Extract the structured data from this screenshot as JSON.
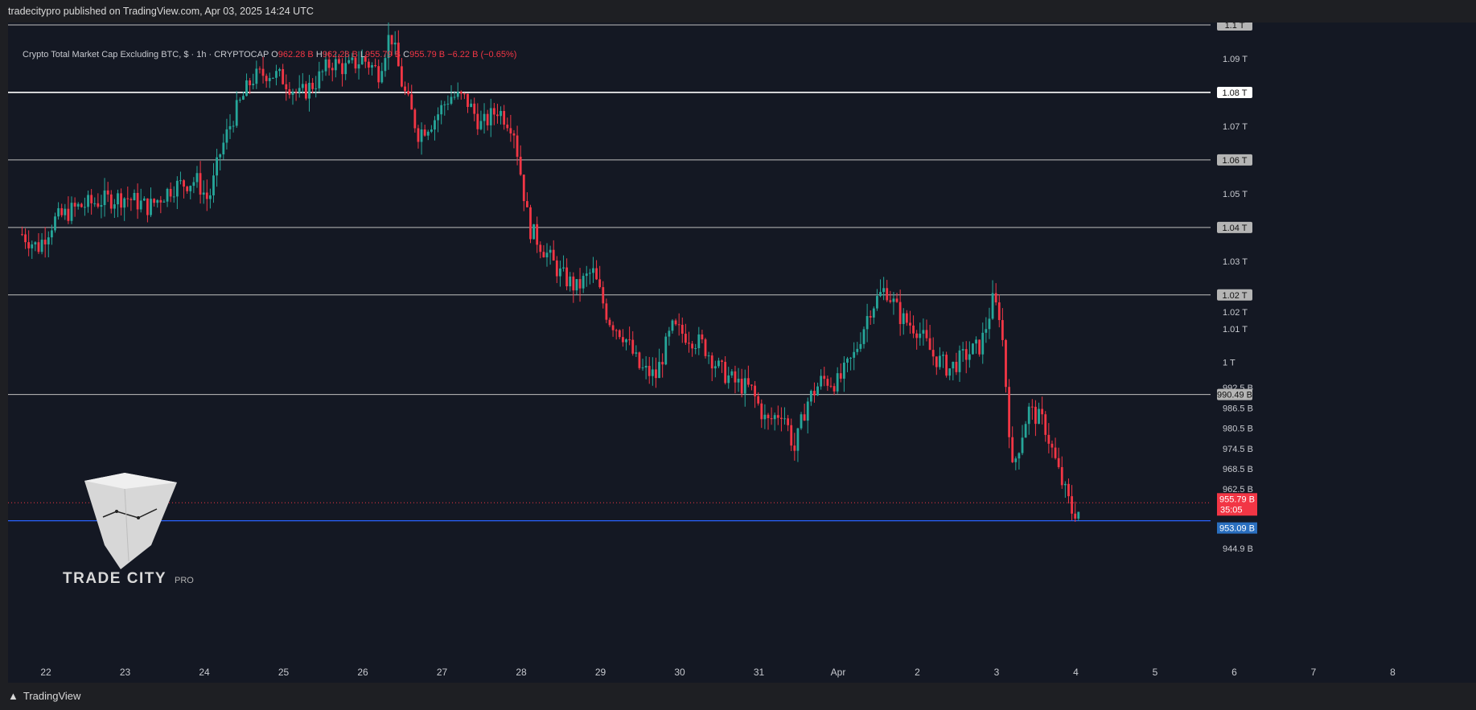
{
  "header": {
    "published_text": "tradecitypro published on TradingView.com, Apr 03, 2025 14:24 UTC"
  },
  "legend": {
    "title": "Crypto Total Market Cap Excluding BTC, $ · 1h · CRYPTOCAP",
    "o_label": "O",
    "o_value": "962.28 B",
    "h_label": "H",
    "h_value": "962.28 B",
    "l_label": "L",
    "l_value": "955.79 B",
    "c_label": "C",
    "c_value": "955.79 B",
    "change": "−6.22 B (−0.65%)"
  },
  "watermark": {
    "brand": "TRADE CITY",
    "suffix": "PRO"
  },
  "footer": {
    "logo_text": "TradingView"
  },
  "colors": {
    "up": "#26a69a",
    "down": "#f23645",
    "background": "#141823",
    "level_line": "#bfbfbf",
    "support_line": "#2962ff",
    "price_tag": "#f23645",
    "support_tag": "#2a6fbf"
  },
  "chart_data": {
    "type": "candlestick",
    "timeframe": "1h",
    "x_tick_labels": [
      "22",
      "23",
      "24",
      "25",
      "26",
      "27",
      "28",
      "29",
      "30",
      "31",
      "Apr",
      "2",
      "3",
      "4",
      "5",
      "6",
      "7",
      "8"
    ],
    "y_tick_labels": [
      {
        "value": 1090000000000.0,
        "label": "1.09 T"
      },
      {
        "value": 1070000000000.0,
        "label": "1.07 T"
      },
      {
        "value": 1060000000000.0,
        "label": "1.06 T"
      },
      {
        "value": 1050000000000.0,
        "label": "1.05 T"
      },
      {
        "value": 1030000000000.0,
        "label": "1.03 T"
      },
      {
        "value": 1020000000000.0,
        "label": "1.02 T"
      },
      {
        "value": 1015000000000.0,
        "label": "1.02 T"
      },
      {
        "value": 1010000000000.0,
        "label": "1.01 T"
      },
      {
        "value": 1000000000000.0,
        "label": "1 T"
      },
      {
        "value": 992500000000.0,
        "label": "992.5 B"
      },
      {
        "value": 986500000000.0,
        "label": "986.5 B"
      },
      {
        "value": 980500000000.0,
        "label": "980.5 B"
      },
      {
        "value": 974500000000.0,
        "label": "974.5 B"
      },
      {
        "value": 968500000000.0,
        "label": "968.5 B"
      },
      {
        "value": 962500000000.0,
        "label": "962.5 B"
      },
      {
        "value": 944900000000.0,
        "label": "944.9 B"
      }
    ],
    "ylim": [
      940000000000.0,
      1100000000000.0
    ],
    "horizontal_levels": [
      {
        "value": 1100000000000.0,
        "label": "1.1 T",
        "emphasis": false
      },
      {
        "value": 1080000000000.0,
        "label": "1.08 T",
        "emphasis": true
      },
      {
        "value": 1060000000000.0,
        "label": "1.06 T",
        "emphasis": false
      },
      {
        "value": 1040000000000.0,
        "label": "1.04 T",
        "emphasis": false
      },
      {
        "value": 1020000000000.0,
        "label": "1.02 T",
        "emphasis": false
      },
      {
        "value": 990490000000.0,
        "label": "990.49 B",
        "emphasis": false
      }
    ],
    "support_line": {
      "value": 953090000000.0,
      "label": "953.09 B"
    },
    "current_price": {
      "value": 955790000000.0,
      "label": "955.79 B",
      "countdown": "35:05"
    },
    "close_path_billions": [
      [
        21.7,
        1038
      ],
      [
        21.9,
        1034
      ],
      [
        22.1,
        1042
      ],
      [
        22.4,
        1046
      ],
      [
        22.7,
        1048
      ],
      [
        23.0,
        1049
      ],
      [
        23.3,
        1046
      ],
      [
        23.6,
        1052
      ],
      [
        23.9,
        1054
      ],
      [
        24.05,
        1048
      ],
      [
        24.1,
        1052
      ],
      [
        24.2,
        1062
      ],
      [
        24.35,
        1072
      ],
      [
        24.6,
        1084
      ],
      [
        24.8,
        1086
      ],
      [
        25.0,
        1084
      ],
      [
        25.2,
        1079
      ],
      [
        25.4,
        1083
      ],
      [
        25.6,
        1089
      ],
      [
        25.8,
        1087
      ],
      [
        26.0,
        1090
      ],
      [
        26.2,
        1086
      ],
      [
        26.35,
        1098
      ],
      [
        26.5,
        1082
      ],
      [
        26.7,
        1068
      ],
      [
        26.9,
        1072
      ],
      [
        27.1,
        1079
      ],
      [
        27.3,
        1078
      ],
      [
        27.5,
        1070
      ],
      [
        27.7,
        1075
      ],
      [
        27.9,
        1070
      ],
      [
        28.0,
        1055
      ],
      [
        28.1,
        1040
      ],
      [
        28.3,
        1033
      ],
      [
        28.5,
        1026
      ],
      [
        28.7,
        1022
      ],
      [
        28.9,
        1027
      ],
      [
        29.1,
        1013
      ],
      [
        29.3,
        1008
      ],
      [
        29.5,
        998
      ],
      [
        29.7,
        996
      ],
      [
        29.9,
        1010
      ],
      [
        30.1,
        1008
      ],
      [
        30.3,
        1005
      ],
      [
        30.5,
        998
      ],
      [
        30.7,
        994
      ],
      [
        30.9,
        992
      ],
      [
        31.1,
        982
      ],
      [
        31.3,
        986
      ],
      [
        31.45,
        974
      ],
      [
        31.6,
        988
      ],
      [
        31.8,
        995
      ],
      [
        32.0,
        994
      ],
      [
        32.2,
        1002
      ],
      [
        32.4,
        1016
      ],
      [
        32.6,
        1022
      ],
      [
        32.8,
        1013
      ],
      [
        33.0,
        1010
      ],
      [
        33.2,
        1002
      ],
      [
        33.4,
        998
      ],
      [
        33.6,
        1002
      ],
      [
        33.8,
        1005
      ],
      [
        33.95,
        1018
      ],
      [
        34.05,
        1014
      ],
      [
        34.2,
        968
      ],
      [
        34.4,
        986
      ],
      [
        34.6,
        982
      ],
      [
        34.8,
        966
      ],
      [
        34.95,
        956
      ],
      [
        35.05,
        955.8
      ]
    ]
  }
}
